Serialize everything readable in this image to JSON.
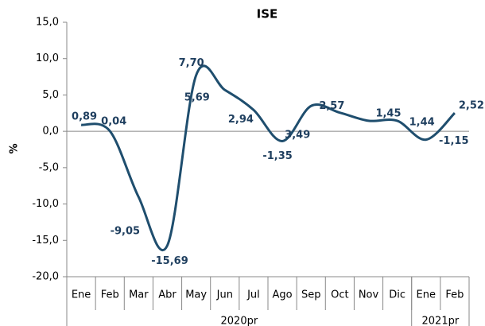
{
  "chart_data": {
    "type": "line",
    "title": "ISE",
    "y_label": "%",
    "categories": [
      "Ene",
      "Feb",
      "Mar",
      "Abr",
      "May",
      "Jun",
      "Jul",
      "Ago",
      "Sep",
      "Oct",
      "Nov",
      "Dic",
      "Ene",
      "Feb"
    ],
    "groups": [
      {
        "label": "2020pr",
        "span": 12
      },
      {
        "label": "2021pr",
        "span": 2
      }
    ],
    "series": [
      {
        "name": "ISE",
        "color": "#1f4e6e",
        "values": [
          0.89,
          0.04,
          -9.05,
          -15.69,
          7.7,
          5.69,
          2.94,
          -1.35,
          3.49,
          2.57,
          1.45,
          1.44,
          -1.15,
          2.52
        ],
        "value_labels": [
          "0,89",
          "0,04",
          "-9,05",
          "-15,69",
          "7,70",
          "5,69",
          "2,94",
          "-1,35",
          "3,49",
          "2,57",
          "1,45",
          "1,44",
          "-1,15",
          "2,52"
        ]
      }
    ],
    "ylim": [
      -20,
      15
    ],
    "yticks": [
      {
        "value": -20,
        "label": "-20,0"
      },
      {
        "value": -15,
        "label": "-15,0"
      },
      {
        "value": -10,
        "label": "-10,0"
      },
      {
        "value": -5,
        "label": "-5,0"
      },
      {
        "value": 0,
        "label": "0,0"
      },
      {
        "value": 5,
        "label": "5,0"
      },
      {
        "value": 10,
        "label": "10,0"
      },
      {
        "value": 15,
        "label": "15,0"
      }
    ]
  }
}
